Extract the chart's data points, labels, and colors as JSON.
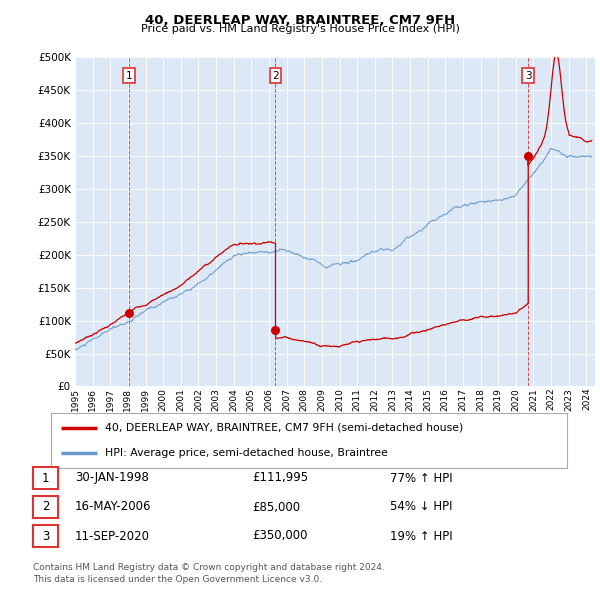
{
  "title": "40, DEERLEAP WAY, BRAINTREE, CM7 9FH",
  "subtitle": "Price paid vs. HM Land Registry's House Price Index (HPI)",
  "background_color": "#ffffff",
  "plot_bg_color": "#dce8f5",
  "transactions": [
    {
      "num": 1,
      "date_label": "30-JAN-1998",
      "price": 111995,
      "pct": "77%",
      "dir": "↑",
      "x_year": 1998.08
    },
    {
      "num": 2,
      "date_label": "16-MAY-2006",
      "price": 85000,
      "pct": "54%",
      "dir": "↓",
      "x_year": 2006.37
    },
    {
      "num": 3,
      "date_label": "11-SEP-2020",
      "price": 350000,
      "pct": "19%",
      "dir": "↑",
      "x_year": 2020.7
    }
  ],
  "legend_line1": "40, DEERLEAP WAY, BRAINTREE, CM7 9FH (semi-detached house)",
  "legend_line2": "HPI: Average price, semi-detached house, Braintree",
  "footer1": "Contains HM Land Registry data © Crown copyright and database right 2024.",
  "footer2": "This data is licensed under the Open Government Licence v3.0.",
  "ylim": [
    0,
    500000
  ],
  "xlim": [
    1995.0,
    2024.5
  ],
  "yticks": [
    0,
    50000,
    100000,
    150000,
    200000,
    250000,
    300000,
    350000,
    400000,
    450000,
    500000
  ],
  "red_line_color": "#cc0000",
  "blue_line_color": "#6699cc",
  "vline_color": "#dd3333"
}
